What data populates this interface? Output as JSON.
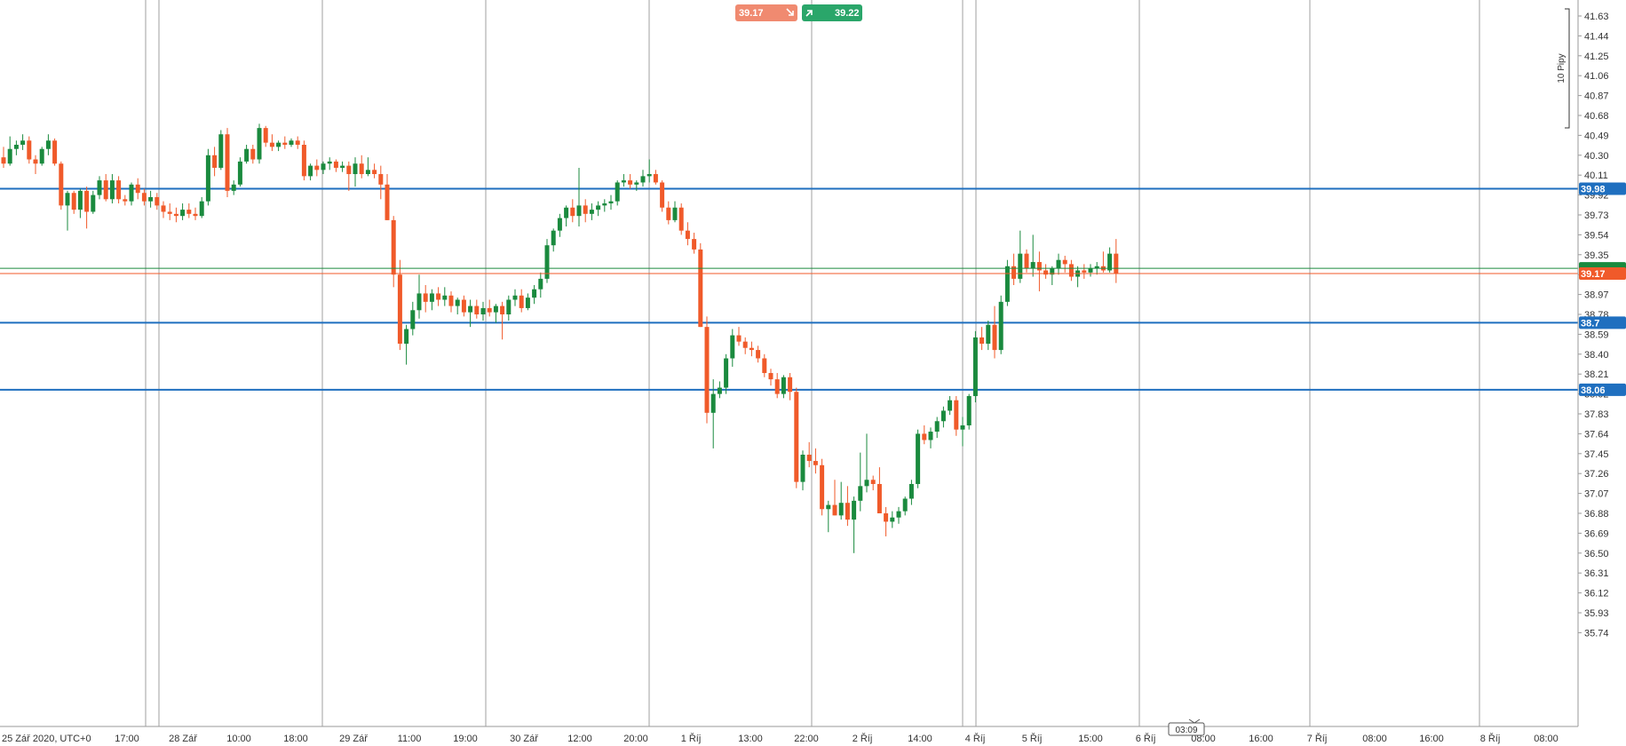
{
  "chart_data": {
    "type": "candlestick",
    "timezone_label": "25 Zář 2020, UTC+0",
    "price_axis": {
      "ticks": [
        "41.63",
        "41.44",
        "41.25",
        "41.06",
        "40.87",
        "40.68",
        "40.49",
        "40.30",
        "40.11",
        "39.92",
        "39.73",
        "39.54",
        "39.35",
        "39.16",
        "38.97",
        "38.78",
        "38.59",
        "38.40",
        "38.21",
        "38.02",
        "37.83",
        "37.64",
        "37.45",
        "37.26",
        "37.07",
        "36.88",
        "36.69",
        "36.50",
        "36.31",
        "36.12",
        "35.93",
        "35.74"
      ],
      "ylim": [
        35.6,
        41.75
      ]
    },
    "time_axis": {
      "labels": [
        "17:00",
        "28 Zář",
        "10:00",
        "18:00",
        "29 Zář",
        "11:00",
        "19:00",
        "30 Zář",
        "12:00",
        "20:00",
        "1 Říj",
        "13:00",
        "22:00",
        "2 Říj",
        "14:00",
        "4 Říj",
        "5 Říj",
        "15:00",
        "6 Říj",
        "08:00",
        "16:00",
        "7 Říj",
        "08:00",
        "16:00",
        "8 Říj",
        "08:00"
      ],
      "session_separators": 9
    },
    "horizontal_lines": [
      {
        "label": "39.98",
        "price": 39.98,
        "color": "#1f6fbf"
      },
      {
        "label": "38.7",
        "price": 38.7,
        "color": "#1f6fbf"
      },
      {
        "label": "38.06",
        "price": 38.06,
        "color": "#1f6fbf"
      }
    ],
    "bid": {
      "label": "39.17",
      "price": 39.17,
      "color": "#f05a2a"
    },
    "ask": {
      "label": "39.22",
      "price": 39.22,
      "color": "#1a8a3e"
    },
    "sell_button": {
      "value": "39.17",
      "icon": "arrow-down-right-icon",
      "color": "#f08a70"
    },
    "buy_button": {
      "value": "39.22",
      "icon": "arrow-up-right-icon",
      "color": "#2aa66a"
    },
    "scale_label": "10 Pipy",
    "countdown": "03:09",
    "colors": {
      "up": "#1a8a3e",
      "down": "#f05a2a",
      "grid": "#888888"
    },
    "candles": [
      [
        40.28,
        40.38,
        40.18,
        40.22
      ],
      [
        40.22,
        40.48,
        40.2,
        40.36
      ],
      [
        40.36,
        40.44,
        40.3,
        40.4
      ],
      [
        40.4,
        40.5,
        40.35,
        40.44
      ],
      [
        40.44,
        40.48,
        40.22,
        40.26
      ],
      [
        40.26,
        40.3,
        40.12,
        40.22
      ],
      [
        40.22,
        40.38,
        40.2,
        40.36
      ],
      [
        40.36,
        40.5,
        40.3,
        40.44
      ],
      [
        40.44,
        40.46,
        40.2,
        40.22
      ],
      [
        40.22,
        40.24,
        39.78,
        39.82
      ],
      [
        39.82,
        39.96,
        39.58,
        39.94
      ],
      [
        39.94,
        39.96,
        39.74,
        39.78
      ],
      [
        39.78,
        39.98,
        39.7,
        39.96
      ],
      [
        39.96,
        40.0,
        39.6,
        39.76
      ],
      [
        39.76,
        39.96,
        39.74,
        39.92
      ],
      [
        39.92,
        40.1,
        39.88,
        40.06
      ],
      [
        40.06,
        40.12,
        39.86,
        39.88
      ],
      [
        39.88,
        40.12,
        39.84,
        40.06
      ],
      [
        40.06,
        40.1,
        39.84,
        39.88
      ],
      [
        39.88,
        39.92,
        39.82,
        39.86
      ],
      [
        39.86,
        40.04,
        39.82,
        40.02
      ],
      [
        40.02,
        40.08,
        39.88,
        39.94
      ],
      [
        39.94,
        39.98,
        39.82,
        39.86
      ],
      [
        39.86,
        39.96,
        39.8,
        39.9
      ],
      [
        39.9,
        39.94,
        39.78,
        39.82
      ],
      [
        39.82,
        39.86,
        39.7,
        39.76
      ],
      [
        39.76,
        39.84,
        39.68,
        39.74
      ],
      [
        39.74,
        39.8,
        39.66,
        39.72
      ],
      [
        39.72,
        39.84,
        39.68,
        39.78
      ],
      [
        39.78,
        39.84,
        39.7,
        39.74
      ],
      [
        39.74,
        39.8,
        39.68,
        39.72
      ],
      [
        39.72,
        39.9,
        39.7,
        39.86
      ],
      [
        39.86,
        40.36,
        39.82,
        40.3
      ],
      [
        40.3,
        40.38,
        40.1,
        40.18
      ],
      [
        40.18,
        40.54,
        40.16,
        40.5
      ],
      [
        40.5,
        40.56,
        39.9,
        39.96
      ],
      [
        39.96,
        40.06,
        39.92,
        40.02
      ],
      [
        40.02,
        40.28,
        40.0,
        40.24
      ],
      [
        40.24,
        40.4,
        40.22,
        40.36
      ],
      [
        40.36,
        40.4,
        40.22,
        40.26
      ],
      [
        40.26,
        40.6,
        40.22,
        40.56
      ],
      [
        40.56,
        40.58,
        40.38,
        40.42
      ],
      [
        40.42,
        40.5,
        40.34,
        40.38
      ],
      [
        40.38,
        40.44,
        40.34,
        40.42
      ],
      [
        40.42,
        40.48,
        40.36,
        40.4
      ],
      [
        40.4,
        40.46,
        40.38,
        40.44
      ],
      [
        40.44,
        40.48,
        40.36,
        40.4
      ],
      [
        40.4,
        40.44,
        40.06,
        40.1
      ],
      [
        40.1,
        40.22,
        40.06,
        40.2
      ],
      [
        40.2,
        40.26,
        40.1,
        40.16
      ],
      [
        40.16,
        40.24,
        40.12,
        40.22
      ],
      [
        40.22,
        40.28,
        40.16,
        40.24
      ],
      [
        40.24,
        40.26,
        40.14,
        40.18
      ],
      [
        40.18,
        40.24,
        40.14,
        40.2
      ],
      [
        40.2,
        40.24,
        39.96,
        40.12
      ],
      [
        40.12,
        40.28,
        40.0,
        40.22
      ],
      [
        40.22,
        40.3,
        40.08,
        40.12
      ],
      [
        40.12,
        40.28,
        40.1,
        40.16
      ],
      [
        40.16,
        40.22,
        40.08,
        40.12
      ],
      [
        40.12,
        40.2,
        39.88,
        40.02
      ],
      [
        40.02,
        40.12,
        39.68,
        39.68
      ],
      [
        39.68,
        39.72,
        39.04,
        39.16
      ],
      [
        39.16,
        39.3,
        38.44,
        38.5
      ],
      [
        38.5,
        38.68,
        38.3,
        38.64
      ],
      [
        38.64,
        38.9,
        38.58,
        38.82
      ],
      [
        38.82,
        39.16,
        38.74,
        38.98
      ],
      [
        38.98,
        39.06,
        38.8,
        38.9
      ],
      [
        38.9,
        39.02,
        38.82,
        38.98
      ],
      [
        38.98,
        39.04,
        38.86,
        38.92
      ],
      [
        38.92,
        39.04,
        38.86,
        38.96
      ],
      [
        38.96,
        39.0,
        38.8,
        38.86
      ],
      [
        38.86,
        38.94,
        38.78,
        38.92
      ],
      [
        38.92,
        38.96,
        38.76,
        38.8
      ],
      [
        38.8,
        38.92,
        38.66,
        38.86
      ],
      [
        38.86,
        38.92,
        38.74,
        38.78
      ],
      [
        38.78,
        38.9,
        38.72,
        38.84
      ],
      [
        38.84,
        38.92,
        38.76,
        38.8
      ],
      [
        38.8,
        38.88,
        38.7,
        38.86
      ],
      [
        38.86,
        38.9,
        38.54,
        38.78
      ],
      [
        38.78,
        38.96,
        38.72,
        38.92
      ],
      [
        38.92,
        39.02,
        38.86,
        38.96
      ],
      [
        38.96,
        39.02,
        38.8,
        38.84
      ],
      [
        38.84,
        38.98,
        38.82,
        38.94
      ],
      [
        38.94,
        39.06,
        38.88,
        39.02
      ],
      [
        39.02,
        39.18,
        38.94,
        39.12
      ],
      [
        39.12,
        39.5,
        39.08,
        39.44
      ],
      [
        39.44,
        39.6,
        39.38,
        39.58
      ],
      [
        39.58,
        39.74,
        39.52,
        39.7
      ],
      [
        39.7,
        39.82,
        39.62,
        39.8
      ],
      [
        39.8,
        39.88,
        39.66,
        39.72
      ],
      [
        39.72,
        40.18,
        39.62,
        39.82
      ],
      [
        39.82,
        39.88,
        39.66,
        39.74
      ],
      [
        39.74,
        39.84,
        39.68,
        39.78
      ],
      [
        39.78,
        39.86,
        39.72,
        39.82
      ],
      [
        39.82,
        39.88,
        39.76,
        39.84
      ],
      [
        39.84,
        39.92,
        39.78,
        39.86
      ],
      [
        39.86,
        40.06,
        39.82,
        40.04
      ],
      [
        40.04,
        40.12,
        40.0,
        40.06
      ],
      [
        40.06,
        40.12,
        39.98,
        40.02
      ],
      [
        40.02,
        40.06,
        39.96,
        40.04
      ],
      [
        40.04,
        40.16,
        40.0,
        40.1
      ],
      [
        40.1,
        40.26,
        40.04,
        40.12
      ],
      [
        40.12,
        40.16,
        40.02,
        40.04
      ],
      [
        40.04,
        40.06,
        39.76,
        39.8
      ],
      [
        39.8,
        39.86,
        39.64,
        39.68
      ],
      [
        39.68,
        39.86,
        39.66,
        39.8
      ],
      [
        39.8,
        39.84,
        39.54,
        39.58
      ],
      [
        39.58,
        39.66,
        39.44,
        39.5
      ],
      [
        39.5,
        39.56,
        39.36,
        39.4
      ],
      [
        39.4,
        39.46,
        38.66,
        38.66
      ],
      [
        38.66,
        38.76,
        37.74,
        37.84
      ],
      [
        37.84,
        38.16,
        37.5,
        38.02
      ],
      [
        38.02,
        38.14,
        37.98,
        38.08
      ],
      [
        38.08,
        38.4,
        38.02,
        38.36
      ],
      [
        38.36,
        38.64,
        38.28,
        38.58
      ],
      [
        38.58,
        38.66,
        38.48,
        38.52
      ],
      [
        38.52,
        38.56,
        38.4,
        38.46
      ],
      [
        38.46,
        38.52,
        38.38,
        38.44
      ],
      [
        38.44,
        38.48,
        38.32,
        38.36
      ],
      [
        38.36,
        38.4,
        38.18,
        38.22
      ],
      [
        38.22,
        38.26,
        38.1,
        38.16
      ],
      [
        38.16,
        38.22,
        37.98,
        38.02
      ],
      [
        38.02,
        38.2,
        37.98,
        38.18
      ],
      [
        38.18,
        38.22,
        37.96,
        38.04
      ],
      [
        38.04,
        38.08,
        37.12,
        37.18
      ],
      [
        37.18,
        37.48,
        37.1,
        37.44
      ],
      [
        37.44,
        37.56,
        37.32,
        37.38
      ],
      [
        37.38,
        37.5,
        37.26,
        37.34
      ],
      [
        37.34,
        37.4,
        36.86,
        36.92
      ],
      [
        36.92,
        37.0,
        36.7,
        36.96
      ],
      [
        36.96,
        37.2,
        36.86,
        36.86
      ],
      [
        36.86,
        37.18,
        36.82,
        36.98
      ],
      [
        36.98,
        37.14,
        36.76,
        36.82
      ],
      [
        36.82,
        37.04,
        36.5,
        37.0
      ],
      [
        37.0,
        37.46,
        36.9,
        37.14
      ],
      [
        37.14,
        37.64,
        37.08,
        37.2
      ],
      [
        37.2,
        37.24,
        37.1,
        37.16
      ],
      [
        37.16,
        37.32,
        36.88,
        36.88
      ],
      [
        36.88,
        36.94,
        36.66,
        36.8
      ],
      [
        36.8,
        36.9,
        36.74,
        36.84
      ],
      [
        36.84,
        36.94,
        36.78,
        36.9
      ],
      [
        36.9,
        37.04,
        36.86,
        37.02
      ],
      [
        37.02,
        37.2,
        36.96,
        37.16
      ],
      [
        37.16,
        37.68,
        37.12,
        37.64
      ],
      [
        37.64,
        37.72,
        37.54,
        37.58
      ],
      [
        37.58,
        37.7,
        37.5,
        37.66
      ],
      [
        37.66,
        37.8,
        37.6,
        37.76
      ],
      [
        37.76,
        37.9,
        37.7,
        37.86
      ],
      [
        37.86,
        38.0,
        37.82,
        37.96
      ],
      [
        37.96,
        38.0,
        37.62,
        37.68
      ],
      [
        37.68,
        37.8,
        37.52,
        37.72
      ],
      [
        37.72,
        38.02,
        37.68,
        38.0
      ],
      [
        38.0,
        38.62,
        37.94,
        38.56
      ],
      [
        38.56,
        38.66,
        38.44,
        38.5
      ],
      [
        38.5,
        38.72,
        38.44,
        38.68
      ],
      [
        38.68,
        38.86,
        38.36,
        38.44
      ],
      [
        38.44,
        38.96,
        38.4,
        38.9
      ],
      [
        38.9,
        39.3,
        38.86,
        39.24
      ],
      [
        39.24,
        39.36,
        39.06,
        39.12
      ],
      [
        39.12,
        39.58,
        39.08,
        39.36
      ],
      [
        39.36,
        39.4,
        39.18,
        39.22
      ],
      [
        39.22,
        39.54,
        39.14,
        39.28
      ],
      [
        39.28,
        39.38,
        39.0,
        39.2
      ],
      [
        39.2,
        39.26,
        39.12,
        39.16
      ],
      [
        39.16,
        39.24,
        39.06,
        39.22
      ],
      [
        39.22,
        39.36,
        39.16,
        39.3
      ],
      [
        39.3,
        39.34,
        39.18,
        39.26
      ],
      [
        39.26,
        39.3,
        39.1,
        39.14
      ],
      [
        39.14,
        39.24,
        39.04,
        39.2
      ],
      [
        39.2,
        39.26,
        39.12,
        39.18
      ],
      [
        39.18,
        39.26,
        39.14,
        39.22
      ],
      [
        39.22,
        39.28,
        39.16,
        39.24
      ],
      [
        39.24,
        39.38,
        39.18,
        39.2
      ],
      [
        39.2,
        39.42,
        39.18,
        39.36
      ],
      [
        39.36,
        39.5,
        39.08,
        39.17
      ]
    ]
  }
}
